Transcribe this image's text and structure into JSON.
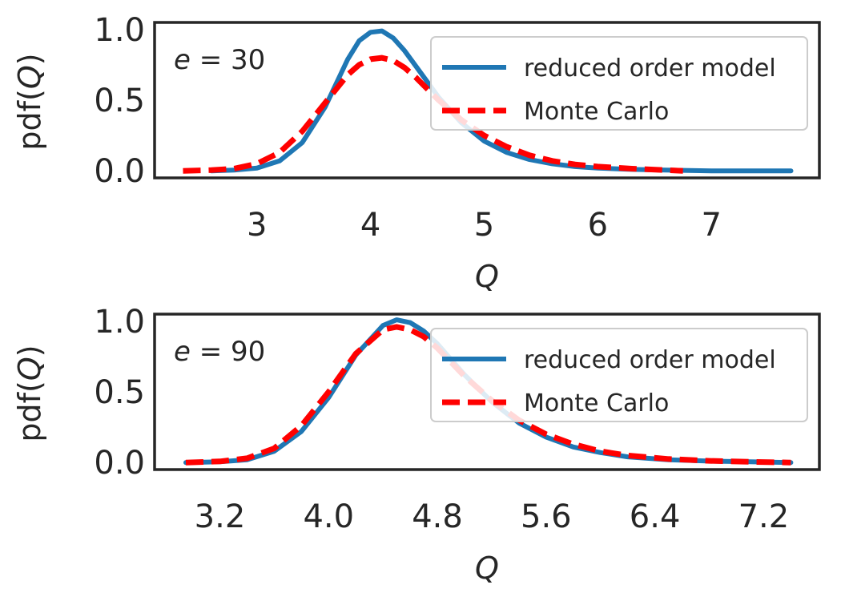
{
  "chart_data": [
    {
      "type": "line",
      "annotation": "e = 30",
      "xlabel": "Q",
      "ylabel": "pdf(Q)",
      "xlim": [
        2.1,
        7.95
      ],
      "ylim": [
        -0.05,
        1.05
      ],
      "xticks": [
        3,
        4,
        5,
        6,
        7
      ],
      "xtick_labels": [
        "3",
        "4",
        "5",
        "6",
        "7"
      ],
      "yticks": [
        0.0,
        0.5,
        1.0
      ],
      "ytick_labels": [
        "0.0",
        "0.5",
        "1.0"
      ],
      "legend_position": "upper right",
      "series": [
        {
          "name": "reduced order model",
          "color": "#1f77b4",
          "style": "solid",
          "x": [
            2.6,
            2.8,
            3.0,
            3.2,
            3.4,
            3.6,
            3.8,
            3.9,
            4.0,
            4.1,
            4.2,
            4.3,
            4.4,
            4.6,
            4.8,
            5.0,
            5.2,
            5.4,
            5.6,
            5.8,
            6.0,
            6.3,
            6.6,
            7.0,
            7.4,
            7.7
          ],
          "y": [
            0.0,
            0.005,
            0.02,
            0.07,
            0.2,
            0.45,
            0.79,
            0.92,
            0.98,
            0.99,
            0.94,
            0.85,
            0.74,
            0.52,
            0.34,
            0.21,
            0.13,
            0.08,
            0.05,
            0.03,
            0.02,
            0.01,
            0.005,
            0.0,
            0.0,
            0.0
          ]
        },
        {
          "name": "Monte Carlo",
          "color": "#ff0000",
          "style": "dashed",
          "x": [
            2.35,
            2.6,
            2.8,
            3.0,
            3.2,
            3.4,
            3.6,
            3.8,
            3.9,
            4.0,
            4.1,
            4.2,
            4.3,
            4.4,
            4.6,
            4.8,
            5.0,
            5.2,
            5.4,
            5.6,
            5.8,
            6.0,
            6.3,
            6.6,
            6.75
          ],
          "y": [
            0.0,
            0.005,
            0.015,
            0.05,
            0.13,
            0.28,
            0.48,
            0.68,
            0.75,
            0.79,
            0.8,
            0.78,
            0.73,
            0.66,
            0.5,
            0.36,
            0.25,
            0.17,
            0.11,
            0.07,
            0.045,
            0.03,
            0.015,
            0.005,
            0.0
          ]
        }
      ]
    },
    {
      "type": "line",
      "annotation": "e = 90",
      "xlabel": "Q",
      "ylabel": "pdf(Q)",
      "xlim": [
        2.72,
        7.61
      ],
      "ylim": [
        -0.05,
        1.05
      ],
      "xticks": [
        3.2,
        4.0,
        4.8,
        5.6,
        6.4,
        7.2
      ],
      "xtick_labels": [
        "3.2",
        "4.0",
        "4.8",
        "5.6",
        "6.4",
        "7.2"
      ],
      "yticks": [
        0.0,
        0.5,
        1.0
      ],
      "ytick_labels": [
        "0.0",
        "0.5",
        "1.0"
      ],
      "legend_position": "upper right",
      "series": [
        {
          "name": "reduced order model",
          "color": "#1f77b4",
          "style": "solid",
          "x": [
            2.95,
            3.2,
            3.4,
            3.6,
            3.8,
            4.0,
            4.2,
            4.4,
            4.5,
            4.6,
            4.7,
            4.8,
            5.0,
            5.2,
            5.4,
            5.6,
            5.8,
            6.0,
            6.2,
            6.5,
            6.8,
            7.1,
            7.4
          ],
          "y": [
            0.0,
            0.005,
            0.02,
            0.08,
            0.22,
            0.46,
            0.76,
            0.97,
            1.01,
            0.99,
            0.93,
            0.84,
            0.62,
            0.43,
            0.28,
            0.18,
            0.11,
            0.07,
            0.04,
            0.02,
            0.01,
            0.005,
            0.0
          ]
        },
        {
          "name": "Monte Carlo",
          "color": "#ff0000",
          "style": "dashed",
          "x": [
            2.95,
            3.2,
            3.4,
            3.6,
            3.8,
            4.0,
            4.2,
            4.4,
            4.5,
            4.6,
            4.7,
            4.8,
            5.0,
            5.2,
            5.4,
            5.6,
            5.8,
            6.0,
            6.2,
            6.5,
            6.8,
            7.1,
            7.4
          ],
          "y": [
            0.0,
            0.008,
            0.03,
            0.1,
            0.26,
            0.5,
            0.77,
            0.94,
            0.96,
            0.94,
            0.89,
            0.81,
            0.61,
            0.44,
            0.3,
            0.2,
            0.13,
            0.08,
            0.05,
            0.025,
            0.012,
            0.005,
            0.0
          ]
        }
      ]
    }
  ]
}
